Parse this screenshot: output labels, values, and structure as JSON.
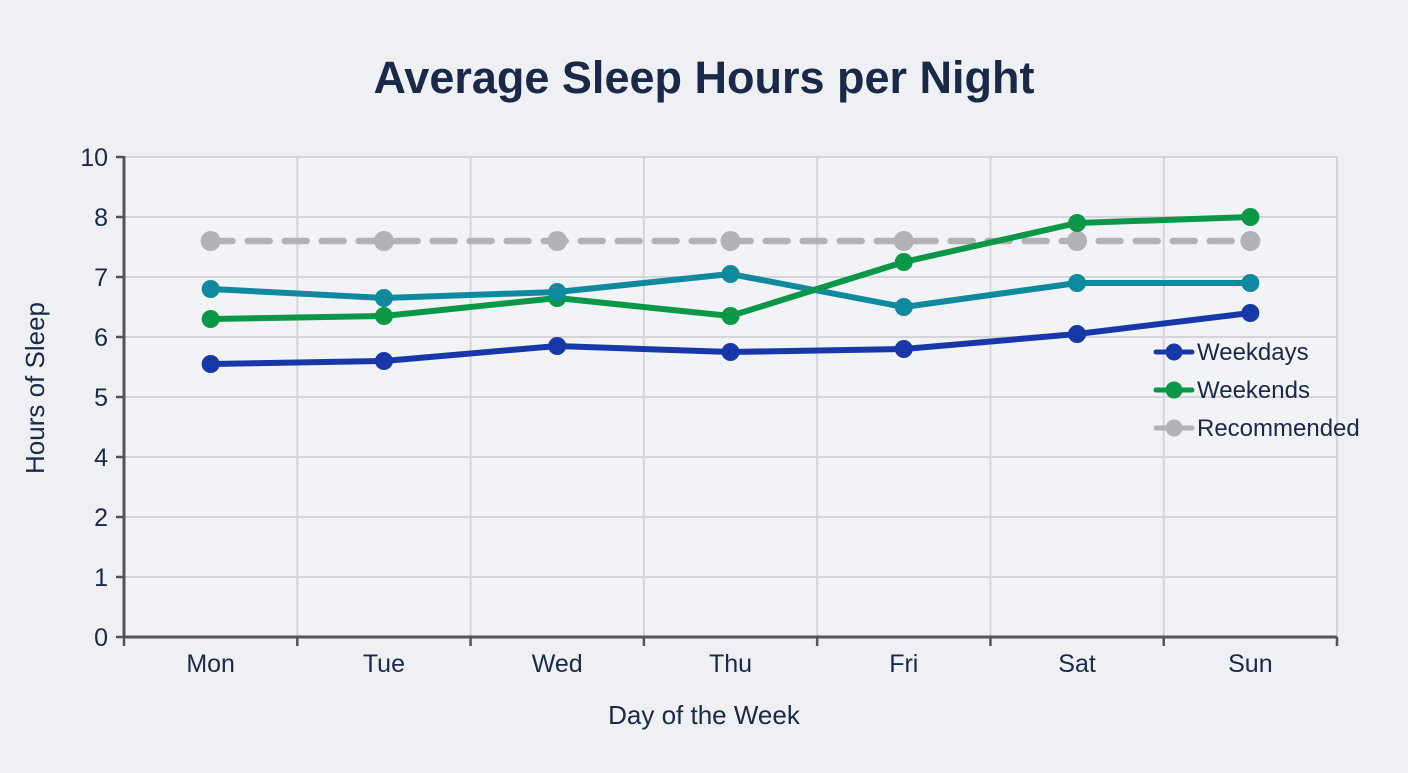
{
  "page": {
    "background": "#eef0f4",
    "text_color": "#1a2947"
  },
  "chart_data": {
    "type": "line",
    "title": "Average Sleep Hours per Night",
    "xlabel": "Day of the Week",
    "ylabel": "Hours of Sleep",
    "categories": [
      "Mon",
      "Tue",
      "Wed",
      "Thu",
      "Fri",
      "Sat",
      "Sun"
    ],
    "y_ticks": [
      0,
      1,
      2,
      4,
      5,
      6,
      7,
      8,
      10
    ],
    "y_axis_note": "tick labels rendered evenly spaced exactly as shown (3 and 9 absent)",
    "grid": true,
    "legend_position": "inside-right",
    "axis_color": "#53555c",
    "grid_color": "#d3d5da",
    "plot_bg": "#f1f3f6",
    "series": [
      {
        "name": "Weekdays",
        "color": "#1838a8",
        "style": "solid",
        "marker": "circle",
        "in_legend": true,
        "values": [
          5.55,
          5.6,
          5.85,
          5.75,
          5.8,
          6.05,
          6.4
        ]
      },
      {
        "name": "Weekends",
        "color": "#0a9747",
        "style": "solid",
        "marker": "circle",
        "in_legend": true,
        "values": [
          6.3,
          6.35,
          6.65,
          6.35,
          7.25,
          7.9,
          8.0
        ]
      },
      {
        "name": "",
        "color": "#0e899e",
        "style": "solid",
        "marker": "circle",
        "in_legend": false,
        "values": [
          6.8,
          6.65,
          6.75,
          7.05,
          6.5,
          6.9,
          6.9
        ]
      },
      {
        "name": "Recommended",
        "color": "#b1b3b8",
        "style": "dashed",
        "marker": "circle",
        "in_legend": true,
        "values": [
          7.6,
          7.6,
          7.6,
          7.6,
          7.6,
          7.6,
          7.6
        ]
      }
    ]
  }
}
